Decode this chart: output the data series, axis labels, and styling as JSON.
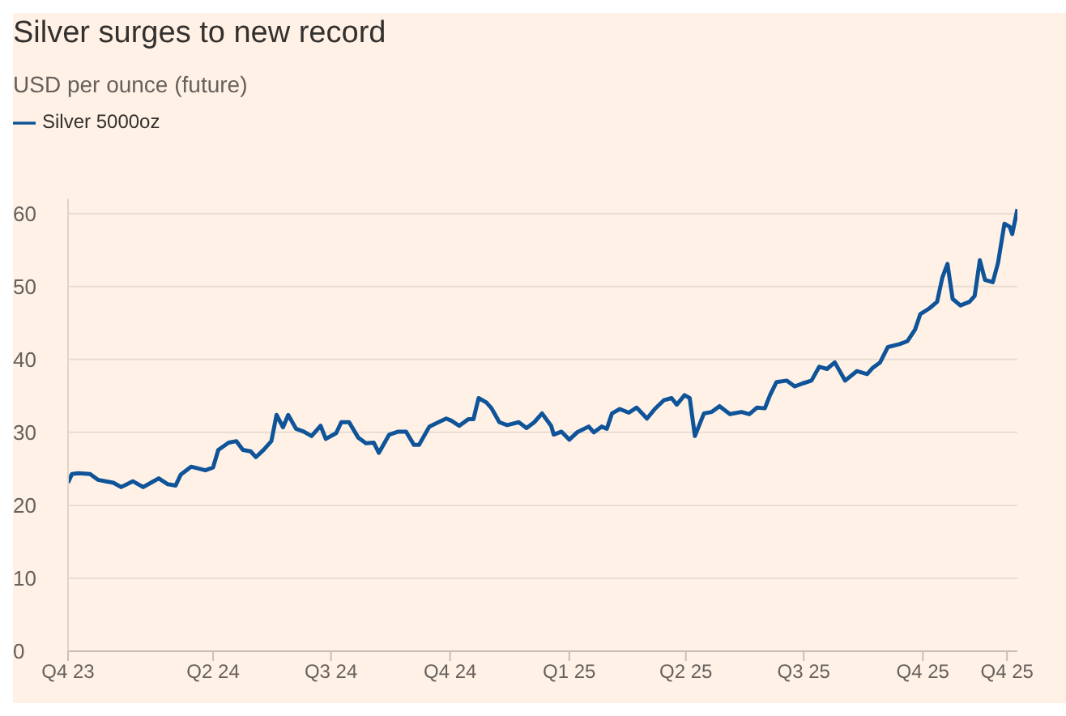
{
  "chart_data": {
    "type": "line",
    "title": "Silver surges to new record",
    "subtitle": "USD per ounce (future)",
    "x": [
      "2023-12-11",
      "2023-12-14",
      "2023-12-19",
      "2023-12-28",
      "2024-01-03",
      "2024-01-09",
      "2024-01-15",
      "2024-01-21",
      "2024-01-30",
      "2024-02-07",
      "2024-02-13",
      "2024-02-19",
      "2024-02-26",
      "2024-03-03",
      "2024-03-07",
      "2024-03-15",
      "2024-03-26",
      "2024-04-01",
      "2024-04-05",
      "2024-04-13",
      "2024-04-19",
      "2024-04-24",
      "2024-04-30",
      "2024-05-04",
      "2024-05-10",
      "2024-05-16",
      "2024-05-20",
      "2024-05-25",
      "2024-05-29",
      "2024-06-04",
      "2024-06-10",
      "2024-06-16",
      "2024-06-23",
      "2024-06-27",
      "2024-07-05",
      "2024-07-09",
      "2024-07-15",
      "2024-07-22",
      "2024-07-28",
      "2024-08-03",
      "2024-08-07",
      "2024-08-15",
      "2024-08-22",
      "2024-08-28",
      "2024-09-03",
      "2024-09-07",
      "2024-09-15",
      "2024-09-22",
      "2024-09-28",
      "2024-10-02",
      "2024-10-08",
      "2024-10-15",
      "2024-10-19",
      "2024-10-23",
      "2024-10-29",
      "2024-11-02",
      "2024-11-08",
      "2024-11-14",
      "2024-11-23",
      "2024-11-29",
      "2024-12-05",
      "2024-12-11",
      "2024-12-18",
      "2024-12-20",
      "2024-12-26",
      "2025-01-01",
      "2025-01-07",
      "2025-01-16",
      "2025-01-20",
      "2025-01-26",
      "2025-01-30",
      "2025-02-03",
      "2025-02-09",
      "2025-02-16",
      "2025-02-22",
      "2025-03-02",
      "2025-03-08",
      "2025-03-15",
      "2025-03-21",
      "2025-03-25",
      "2025-03-31",
      "2025-04-04",
      "2025-04-08",
      "2025-04-15",
      "2025-04-21",
      "2025-04-27",
      "2025-05-05",
      "2025-05-14",
      "2025-05-20",
      "2025-05-26",
      "2025-06-01",
      "2025-06-05",
      "2025-06-10",
      "2025-06-18",
      "2025-06-24",
      "2025-06-30",
      "2025-07-07",
      "2025-07-13",
      "2025-07-19",
      "2025-07-25",
      "2025-08-02",
      "2025-08-11",
      "2025-08-19",
      "2025-08-23",
      "2025-08-29",
      "2025-09-04",
      "2025-09-13",
      "2025-09-19",
      "2025-09-25",
      "2025-09-29",
      "2025-10-06",
      "2025-10-12",
      "2025-10-16",
      "2025-10-20",
      "2025-10-24",
      "2025-10-30",
      "2025-11-06",
      "2025-11-10",
      "2025-11-14",
      "2025-11-18",
      "2025-11-24",
      "2025-11-28",
      "2025-12-03",
      "2025-12-07",
      "2025-12-09",
      "2025-12-13"
    ],
    "series": [
      {
        "name": "Silver 5000oz",
        "color": "#0f5499",
        "values": [
          23.1,
          24.3,
          24.4,
          24.3,
          23.5,
          23.3,
          23.1,
          22.5,
          23.3,
          22.5,
          23.1,
          23.7,
          22.9,
          22.7,
          24.2,
          25.3,
          24.8,
          25.2,
          27.6,
          28.6,
          28.8,
          27.6,
          27.4,
          26.6,
          27.6,
          28.8,
          32.4,
          30.7,
          32.4,
          30.5,
          30.1,
          29.5,
          30.9,
          29.1,
          29.9,
          31.4,
          31.4,
          29.3,
          28.5,
          28.6,
          27.2,
          29.7,
          30.1,
          30.1,
          28.3,
          28.3,
          30.8,
          31.4,
          31.9,
          31.6,
          30.9,
          31.8,
          31.8,
          34.7,
          34.1,
          33.3,
          31.4,
          31.0,
          31.4,
          30.6,
          31.4,
          32.6,
          30.9,
          29.7,
          30.1,
          29.0,
          30.0,
          30.8,
          30.0,
          30.8,
          30.5,
          32.6,
          33.2,
          32.7,
          33.4,
          31.9,
          33.2,
          34.4,
          34.7,
          33.8,
          35.1,
          34.7,
          29.5,
          32.6,
          32.8,
          33.6,
          32.5,
          32.8,
          32.5,
          33.4,
          33.3,
          35.1,
          36.9,
          37.1,
          36.3,
          36.7,
          37.1,
          39.0,
          38.7,
          39.6,
          37.1,
          38.4,
          38.0,
          38.8,
          39.6,
          41.7,
          42.1,
          42.5,
          44.1,
          46.2,
          47.0,
          47.9,
          51.2,
          53.1,
          48.3,
          47.4,
          47.9,
          48.7,
          53.6,
          50.9,
          50.6,
          53.2,
          58.6,
          58.2,
          57.2,
          60.6
        ]
      }
    ],
    "xlim": [
      "2023-12-11",
      "2025-12-13"
    ],
    "xticks": [
      {
        "value": "2023-12-11",
        "label": "Q4 23"
      },
      {
        "value": "2024-04-01",
        "label": "Q2 24"
      },
      {
        "value": "2024-07-01",
        "label": "Q3 24"
      },
      {
        "value": "2024-10-01",
        "label": "Q4 24"
      },
      {
        "value": "2025-01-01",
        "label": "Q1 25"
      },
      {
        "value": "2025-04-01",
        "label": "Q2 25"
      },
      {
        "value": "2025-07-01",
        "label": "Q3 25"
      },
      {
        "value": "2025-10-01",
        "label": "Q4 25"
      },
      {
        "value": "2025-12-05",
        "label": "Q4 25"
      }
    ],
    "ylim": [
      0,
      62
    ],
    "yticks": [
      0,
      10,
      20,
      30,
      40,
      50,
      60
    ],
    "grid": "y",
    "legend": "top left",
    "marker": "none",
    "line_style": "solid"
  }
}
